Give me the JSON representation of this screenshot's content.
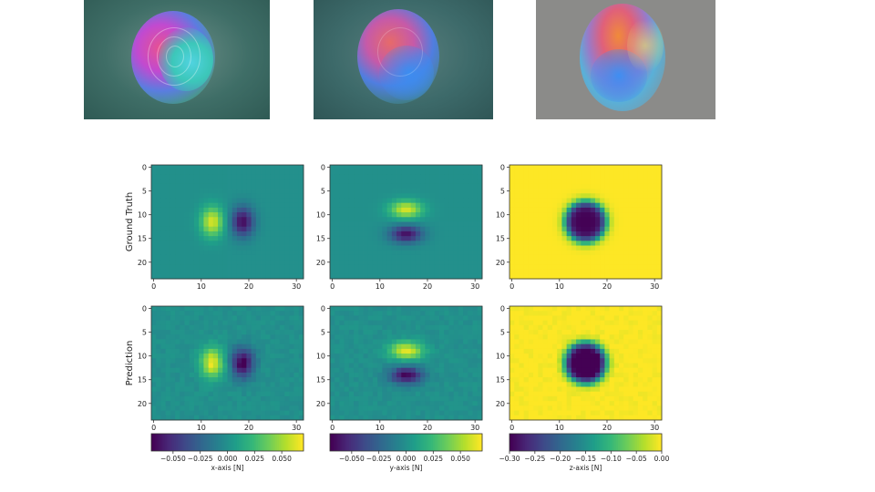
{
  "photos": [
    {
      "name": "sensor-image-1",
      "bg": "#3f6e67",
      "gray": false
    },
    {
      "name": "sensor-image-2",
      "bg": "#3d6a6a",
      "gray": false
    },
    {
      "name": "sensor-image-3",
      "bg": "#8b8b89",
      "gray": true
    }
  ],
  "chart_data": {
    "type": "heatmap",
    "row_labels": [
      "Ground Truth",
      "Prediction"
    ],
    "grid_size": {
      "rows": 24,
      "cols": 32
    },
    "x_ticks": [
      0,
      10,
      20,
      30
    ],
    "y_ticks": [
      0,
      5,
      10,
      15,
      20
    ],
    "colormap": "viridis",
    "columns": [
      {
        "axis": "x",
        "colorbar_label": "x-axis [N]",
        "colorbar_ticks": [
          "−0.050",
          "−0.025",
          "0.000",
          "0.025",
          "0.050"
        ],
        "colorbar_tick_values": [
          -0.05,
          -0.025,
          0.0,
          0.025,
          0.05
        ],
        "range": [
          -0.07,
          0.07
        ],
        "pattern": "dipole-x",
        "center": [
          15.5,
          11.5
        ],
        "offset": 3.2
      },
      {
        "axis": "y",
        "colorbar_label": "y-axis [N]",
        "colorbar_ticks": [
          "−0.050",
          "−0.025",
          "0.000",
          "0.025",
          "0.050"
        ],
        "colorbar_tick_values": [
          -0.05,
          -0.025,
          0.0,
          0.025,
          0.05
        ],
        "range": [
          -0.07,
          0.07
        ],
        "pattern": "dipole-y",
        "center": [
          15.5,
          11.5
        ],
        "offset": 2.6
      },
      {
        "axis": "z",
        "colorbar_label": "z-axis [N]",
        "colorbar_ticks": [
          "−0.30",
          "−0.25",
          "−0.20",
          "−0.15",
          "−0.10",
          "−0.05",
          "0.00"
        ],
        "colorbar_tick_values": [
          -0.3,
          -0.25,
          -0.2,
          -0.15,
          -0.1,
          -0.05,
          0.0
        ],
        "range": [
          -0.3,
          0.0
        ],
        "pattern": "disc",
        "center": [
          15.5,
          11.5
        ],
        "radius": 4.2
      }
    ]
  }
}
